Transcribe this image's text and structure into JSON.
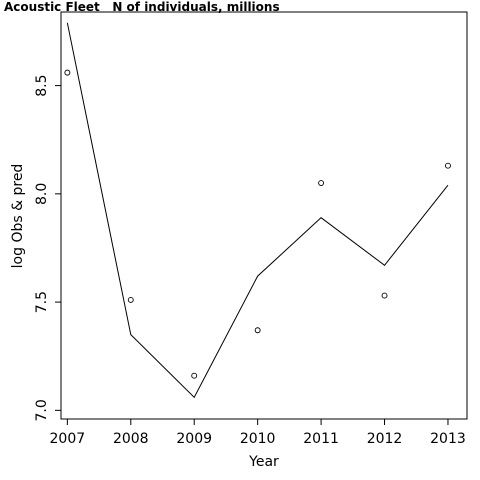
{
  "chart_data": {
    "type": "line",
    "title": "Acoustic Fleet   N of individuals, millions",
    "xlabel": "Year",
    "ylabel": "log Obs & pred",
    "xlim": [
      2006.9,
      2013.3
    ],
    "ylim": [
      6.96,
      8.84
    ],
    "xticks": [
      2007,
      2008,
      2009,
      2010,
      2011,
      2012,
      2013
    ],
    "yticks": [
      7.0,
      7.5,
      8.0,
      8.5
    ],
    "ytick_labels": [
      "7.0",
      "7.5",
      "8.0",
      "8.5"
    ],
    "grid": false,
    "series": [
      {
        "style": "line",
        "x": [
          2007,
          2008,
          2009,
          2010,
          2011,
          2012,
          2013
        ],
        "y": [
          8.79,
          7.35,
          7.06,
          7.62,
          7.89,
          7.67,
          8.04
        ]
      },
      {
        "style": "points",
        "marker": "open-circle",
        "x": [
          2007,
          2008,
          2009,
          2010,
          2011,
          2012,
          2013
        ],
        "y": [
          8.56,
          7.51,
          7.16,
          7.37,
          8.05,
          7.53,
          8.13
        ]
      }
    ]
  }
}
